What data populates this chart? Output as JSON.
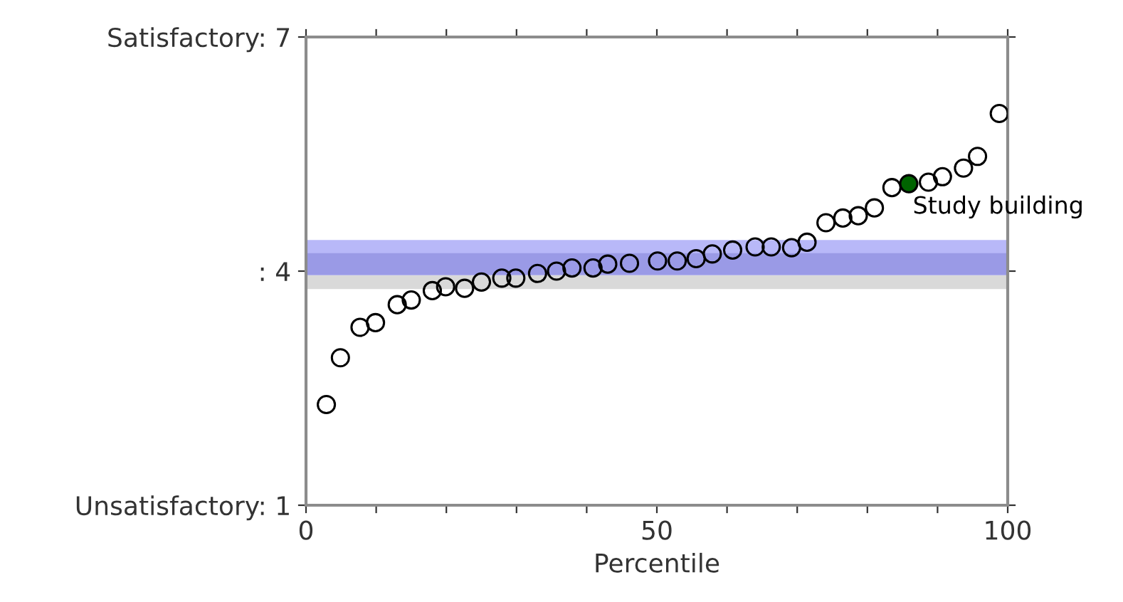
{
  "chart_data": {
    "type": "scatter",
    "xlabel": "Percentile",
    "xlim": [
      0,
      100
    ],
    "ylim": [
      1,
      7
    ],
    "xticks": [
      0,
      {
        "value": 10,
        "label": null
      },
      {
        "value": 20,
        "label": null
      },
      {
        "value": 30,
        "label": null
      },
      {
        "value": 40,
        "label": null
      },
      50,
      {
        "value": 60,
        "label": null
      },
      {
        "value": 70,
        "label": null
      },
      {
        "value": 80,
        "label": null
      },
      {
        "value": 90,
        "label": null
      },
      100
    ],
    "yticks": [
      {
        "value": 1,
        "label": "Unsatisfactory: 1"
      },
      {
        "value": 4,
        "label": ": 4"
      },
      {
        "value": 7,
        "label": "Satisfactory: 7"
      }
    ],
    "grid": false,
    "marker": "circle",
    "bands": [
      {
        "axis": "y",
        "from": 3.77,
        "to": 3.95,
        "color": "#d9d9d9"
      },
      {
        "axis": "y",
        "from": 3.95,
        "to": 4.4,
        "color": "#b8b8f8"
      },
      {
        "axis": "y",
        "from": 3.95,
        "to": 4.23,
        "color": "#9a9ae6"
      }
    ],
    "series": [
      {
        "color": "#000000",
        "x": [
          2.9,
          4.9,
          7.7,
          9.9,
          13.0,
          15.0,
          18.0,
          19.9,
          22.6,
          25.0,
          27.9,
          29.9,
          33.0,
          35.7,
          37.9,
          40.9,
          43.0,
          46.1,
          50.1,
          52.9,
          55.6,
          57.9,
          60.8,
          64.0,
          66.3,
          69.2,
          71.4,
          74.1,
          76.5,
          78.7,
          81.0,
          83.5,
          88.7,
          90.7,
          93.7,
          95.7,
          98.8
        ],
        "values": [
          2.29,
          2.89,
          3.28,
          3.34,
          3.57,
          3.63,
          3.75,
          3.8,
          3.78,
          3.86,
          3.91,
          3.91,
          3.97,
          4.0,
          4.04,
          4.04,
          4.09,
          4.1,
          4.13,
          4.13,
          4.16,
          4.22,
          4.27,
          4.31,
          4.31,
          4.3,
          4.37,
          4.62,
          4.68,
          4.71,
          4.81,
          5.07,
          5.14,
          5.21,
          5.32,
          5.47,
          6.02
        ]
      },
      {
        "color": "#006400",
        "x": [
          85.9
        ],
        "values": [
          5.12
        ]
      }
    ],
    "annotations": [
      {
        "text": "Study building",
        "x": 85.9,
        "y": 5.12
      }
    ]
  }
}
